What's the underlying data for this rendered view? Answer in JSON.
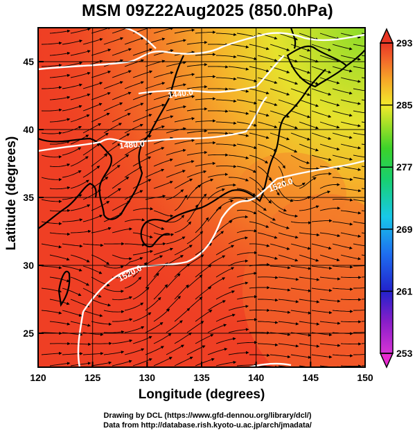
{
  "title": "MSM 09Z22Aug2025 (850.0hPa)",
  "xlabel": "Longitude (degrees)",
  "ylabel": "Latitude  (degrees)",
  "credits": {
    "line1": "Drawing by DCL (https://www.gfd-dennou.org/library/dcl/)",
    "line2": "Data from http://database.rish.kyoto-u.ac.jp/arch/jmadata/"
  },
  "chart_data": {
    "type": "heatmap",
    "xlim": [
      120,
      150
    ],
    "ylim": [
      22.5,
      47.5
    ],
    "x_ticks": [
      120,
      125,
      130,
      135,
      140,
      145,
      150
    ],
    "y_ticks": [
      25,
      30,
      35,
      40,
      45
    ],
    "grid": true,
    "colorbar": {
      "min": 253,
      "max": 293,
      "tick_labels": [
        253,
        261,
        269,
        277,
        285,
        293
      ],
      "extend": "both"
    },
    "contours": [
      {
        "label": "1440.0"
      },
      {
        "label": "1480.0"
      },
      {
        "label": "1520.0"
      },
      {
        "label": "1520.0"
      }
    ],
    "colors": {
      "warm": "#f0341e",
      "mid": "#f26a2a",
      "orange": "#f79a2a",
      "yellow": "#f0e22c",
      "green": "#98de2a"
    }
  }
}
